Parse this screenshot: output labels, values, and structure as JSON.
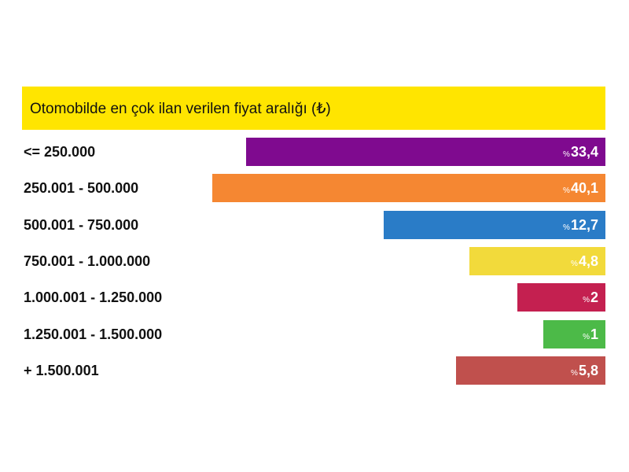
{
  "chart_data": {
    "type": "bar",
    "orientation": "horizontal",
    "title": "Otomobilde en çok ilan verilen fiyat aralığı (₺)",
    "title_bg": "#ffe500",
    "value_prefix": "%",
    "categories": [
      "<= 250.000",
      "250.001 - 500.000",
      "500.001 - 750.000",
      "750.001 - 1.000.000",
      "1.000.001 - 1.250.000",
      "1.250.001 - 1.500.000",
      "+ 1.500.001"
    ],
    "values": [
      33.4,
      40.1,
      12.7,
      4.8,
      2,
      1,
      5.8
    ],
    "value_labels": [
      "33,4",
      "40,1",
      "12,7",
      "4,8",
      "2",
      "1",
      "5,8"
    ],
    "colors": [
      "#7f0a8f",
      "#f58732",
      "#2a7cc7",
      "#f2da3b",
      "#c42050",
      "#4cba48",
      "#c0504d"
    ]
  }
}
